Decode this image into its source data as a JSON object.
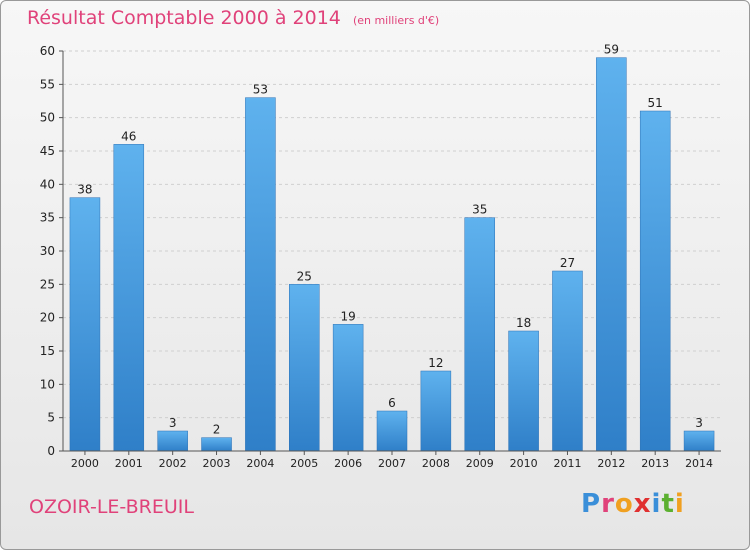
{
  "header": {
    "title": "Résultat Comptable 2000 à 2014",
    "subtitle": "(en milliers d'€)"
  },
  "footer": {
    "town": "OZOIR-LE-BREUIL",
    "logo_letters": [
      "P",
      "r",
      "o",
      "x",
      "i",
      "t",
      "i"
    ],
    "logo_colors": [
      "#3a8fd9",
      "#e0427a",
      "#f0a020",
      "#e03030",
      "#3a8fd9",
      "#5cb030",
      "#f0a020"
    ]
  },
  "colors": {
    "bar_top": "#5fb2ee",
    "bar_bottom": "#2f7fc8",
    "grid": "#cfcfcf",
    "axis": "#555555",
    "text": "#222222"
  },
  "chart_data": {
    "type": "bar",
    "categories": [
      "2000",
      "2001",
      "2002",
      "2003",
      "2004",
      "2005",
      "2006",
      "2007",
      "2008",
      "2009",
      "2010",
      "2011",
      "2012",
      "2013",
      "2014"
    ],
    "values": [
      38,
      46,
      3,
      2,
      53,
      25,
      19,
      6,
      12,
      35,
      18,
      27,
      59,
      51,
      3
    ],
    "ylim": [
      0,
      60
    ],
    "yticks": [
      0,
      5,
      10,
      15,
      20,
      25,
      30,
      35,
      40,
      45,
      50,
      55,
      60
    ],
    "grid": true,
    "xlabel": "",
    "ylabel": ""
  }
}
